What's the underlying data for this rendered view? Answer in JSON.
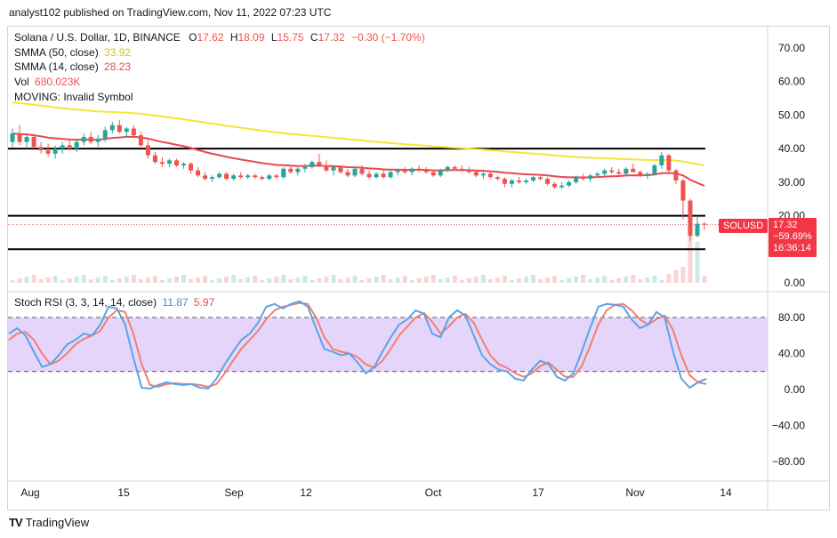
{
  "header": {
    "publisher": "analyst102 published on TradingView.com, Nov 11, 2022 07:23 UTC"
  },
  "legend": {
    "instrument": "Solana / U.S. Dollar, 1D, BINANCE",
    "open_label": "O",
    "open": "17.62",
    "high_label": "H",
    "high": "18.09",
    "low_label": "L",
    "low": "15.75",
    "close_label": "C",
    "close": "17.32",
    "change": "−0.30 (−1.70%)",
    "smma50_label": "SMMA (50, close)",
    "smma50_value": "33.92",
    "smma14_label": "SMMA (14, close)",
    "smma14_value": "28.23",
    "vol_label": "Vol",
    "vol_value": "680.023K",
    "moving_label": "MOVING: Invalid Symbol",
    "stoch_label": "Stoch RSI (3, 3, 14, 14, close)",
    "stoch_k": "11.87",
    "stoch_d": "5.97"
  },
  "price_tag": {
    "symbol": "SOLUSD",
    "price": "17.32",
    "change_pct": "−59.69%",
    "countdown": "16:36:14"
  },
  "footer": {
    "brand": "TradingView",
    "logo": "TV"
  },
  "colors": {
    "up": "#26a69a",
    "down": "#ef5350",
    "smma50": "#f5e63a",
    "smma14": "#e8484d",
    "stoch_k": "#5ba3e6",
    "stoch_d": "#f08070",
    "band": "#e6d5fb",
    "tag": "#f23645"
  },
  "chart_data": [
    {
      "type": "candlestick",
      "title": "Solana / U.S. Dollar, 1D, BINANCE",
      "y_ticks": [
        "70.00",
        "60.00",
        "50.00",
        "40.00",
        "30.00",
        "20.00",
        "0.00"
      ],
      "x_ticks": [
        "Aug",
        "15",
        "Sep",
        "12",
        "Oct",
        "17",
        "Nov",
        "14"
      ],
      "ylim": [
        0,
        75
      ],
      "horizontal_levels": [
        40,
        20,
        10
      ],
      "ohlc": [
        [
          42.0,
          46.0,
          40.5,
          44.5
        ],
        [
          44.5,
          47.0,
          41.0,
          42.0
        ],
        [
          42.0,
          44.0,
          40.0,
          43.5
        ],
        [
          43.5,
          44.5,
          40.0,
          40.5
        ],
        [
          40.5,
          42.0,
          38.5,
          39.5
        ],
        [
          39.5,
          41.5,
          37.5,
          38.5
        ],
        [
          38.5,
          41.0,
          37.0,
          40.0
        ],
        [
          40.0,
          42.0,
          38.5,
          41.0
        ],
        [
          41.0,
          42.5,
          39.5,
          40.0
        ],
        [
          40.0,
          43.0,
          39.0,
          42.0
        ],
        [
          42.0,
          44.5,
          41.0,
          43.5
        ],
        [
          43.5,
          45.0,
          41.5,
          42.0
        ],
        [
          42.0,
          44.0,
          40.5,
          43.0
        ],
        [
          43.0,
          46.5,
          42.0,
          45.5
        ],
        [
          45.5,
          48.0,
          44.5,
          47.0
        ],
        [
          47.0,
          48.5,
          44.5,
          45.0
        ],
        [
          45.0,
          46.5,
          43.5,
          46.0
        ],
        [
          46.0,
          47.0,
          43.5,
          44.0
        ],
        [
          44.0,
          45.0,
          40.5,
          41.0
        ],
        [
          41.0,
          42.5,
          37.0,
          38.0
        ],
        [
          38.0,
          39.0,
          35.5,
          36.0
        ],
        [
          36.0,
          37.5,
          34.5,
          35.5
        ],
        [
          35.5,
          37.0,
          34.5,
          36.5
        ],
        [
          36.5,
          37.0,
          34.5,
          35.0
        ],
        [
          35.0,
          36.0,
          34.0,
          35.5
        ],
        [
          35.5,
          36.0,
          32.5,
          33.5
        ],
        [
          33.5,
          34.5,
          31.5,
          32.0
        ],
        [
          32.0,
          33.0,
          30.5,
          31.0
        ],
        [
          31.0,
          32.0,
          30.0,
          31.5
        ],
        [
          31.5,
          33.0,
          31.0,
          32.5
        ],
        [
          32.5,
          33.0,
          30.5,
          31.0
        ],
        [
          31.0,
          32.5,
          30.5,
          32.0
        ],
        [
          32.0,
          33.0,
          31.0,
          31.5
        ],
        [
          31.5,
          32.5,
          31.0,
          32.0
        ],
        [
          32.0,
          32.5,
          31.0,
          31.5
        ],
        [
          31.5,
          32.0,
          30.5,
          31.0
        ],
        [
          31.0,
          32.5,
          30.5,
          32.0
        ],
        [
          32.0,
          32.5,
          31.0,
          31.5
        ],
        [
          31.5,
          34.5,
          31.0,
          34.0
        ],
        [
          34.0,
          35.0,
          32.5,
          33.0
        ],
        [
          33.0,
          34.5,
          32.0,
          34.0
        ],
        [
          34.0,
          35.5,
          33.0,
          34.5
        ],
        [
          34.5,
          36.5,
          34.0,
          36.0
        ],
        [
          36.0,
          38.5,
          34.5,
          35.0
        ],
        [
          35.0,
          36.5,
          33.0,
          33.5
        ],
        [
          33.5,
          35.0,
          32.0,
          34.5
        ],
        [
          34.5,
          35.0,
          32.5,
          33.0
        ],
        [
          33.0,
          34.0,
          31.5,
          32.0
        ],
        [
          32.0,
          34.5,
          31.5,
          34.0
        ],
        [
          34.0,
          35.0,
          32.0,
          32.5
        ],
        [
          32.5,
          33.5,
          31.0,
          31.5
        ],
        [
          31.5,
          33.0,
          31.0,
          32.5
        ],
        [
          32.5,
          33.5,
          31.0,
          31.5
        ],
        [
          31.5,
          33.5,
          31.0,
          33.0
        ],
        [
          33.0,
          34.0,
          32.0,
          33.5
        ],
        [
          33.5,
          34.5,
          32.5,
          33.0
        ],
        [
          33.0,
          34.5,
          32.0,
          34.0
        ],
        [
          34.0,
          35.0,
          33.0,
          33.5
        ],
        [
          33.5,
          34.5,
          32.5,
          33.0
        ],
        [
          33.0,
          33.5,
          31.5,
          32.0
        ],
        [
          32.0,
          34.0,
          31.5,
          33.5
        ],
        [
          33.5,
          35.0,
          33.0,
          34.5
        ],
        [
          34.5,
          35.0,
          33.5,
          34.0
        ],
        [
          34.0,
          35.0,
          33.0,
          33.5
        ],
        [
          33.5,
          34.5,
          32.5,
          33.0
        ],
        [
          33.0,
          33.5,
          31.5,
          32.0
        ],
        [
          32.0,
          33.0,
          31.0,
          32.5
        ],
        [
          32.5,
          33.0,
          31.0,
          31.5
        ],
        [
          31.5,
          32.0,
          30.5,
          31.0
        ],
        [
          31.0,
          31.5,
          28.5,
          29.5
        ],
        [
          29.5,
          31.0,
          28.5,
          30.5
        ],
        [
          30.5,
          31.5,
          29.5,
          30.0
        ],
        [
          30.0,
          31.0,
          29.5,
          30.5
        ],
        [
          30.5,
          32.0,
          30.0,
          31.5
        ],
        [
          31.5,
          32.0,
          30.5,
          31.0
        ],
        [
          31.0,
          31.5,
          29.0,
          29.5
        ],
        [
          29.5,
          30.0,
          28.0,
          28.5
        ],
        [
          28.5,
          30.0,
          28.0,
          29.0
        ],
        [
          29.0,
          30.5,
          28.5,
          30.0
        ],
        [
          30.0,
          32.0,
          29.5,
          31.5
        ],
        [
          31.5,
          32.5,
          30.5,
          31.0
        ],
        [
          31.0,
          32.5,
          30.0,
          32.0
        ],
        [
          32.0,
          33.0,
          31.5,
          32.5
        ],
        [
          32.5,
          34.0,
          32.0,
          33.5
        ],
        [
          33.5,
          34.5,
          32.5,
          33.0
        ],
        [
          33.0,
          34.0,
          32.0,
          32.5
        ],
        [
          32.5,
          34.5,
          32.0,
          34.0
        ],
        [
          34.0,
          35.5,
          33.5,
          33.0
        ],
        [
          33.0,
          33.5,
          31.5,
          32.0
        ],
        [
          32.0,
          33.0,
          31.0,
          32.5
        ],
        [
          32.5,
          35.5,
          32.0,
          35.0
        ],
        [
          35.0,
          39.0,
          34.0,
          38.0
        ],
        [
          38.0,
          38.5,
          33.0,
          33.5
        ],
        [
          33.5,
          34.0,
          29.5,
          30.5
        ],
        [
          30.5,
          31.0,
          19.0,
          24.5
        ],
        [
          24.5,
          25.0,
          12.5,
          14.0
        ],
        [
          14.0,
          20.0,
          13.5,
          17.6
        ],
        [
          17.62,
          18.09,
          15.75,
          17.32
        ]
      ],
      "volume_scale_note": "volume histogram under candles"
    },
    {
      "type": "line",
      "title": "Stoch RSI (3, 3, 14, 14, close)",
      "y_ticks": [
        "80.00",
        "40.00",
        "0.00",
        "−40.00",
        "−80.00"
      ],
      "ylim": [
        -95,
        105
      ],
      "band": [
        20,
        80
      ],
      "series": [
        {
          "name": "K",
          "values": [
            62,
            68,
            60,
            42,
            25,
            28,
            38,
            50,
            55,
            62,
            60,
            72,
            92,
            90,
            72,
            35,
            2,
            1,
            5,
            8,
            6,
            5,
            6,
            2,
            1,
            12,
            28,
            42,
            55,
            62,
            74,
            92,
            95,
            90,
            95,
            98,
            92,
            68,
            45,
            42,
            38,
            40,
            30,
            18,
            25,
            42,
            58,
            72,
            78,
            88,
            84,
            62,
            58,
            80,
            88,
            82,
            60,
            38,
            28,
            22,
            20,
            12,
            10,
            22,
            32,
            28,
            14,
            10,
            18,
            42,
            68,
            92,
            95,
            94,
            92,
            78,
            68,
            72,
            86,
            80,
            42,
            12,
            2,
            8,
            12
          ]
        },
        {
          "name": "D",
          "values": [
            55,
            62,
            64,
            55,
            40,
            28,
            32,
            40,
            50,
            56,
            60,
            65,
            80,
            88,
            86,
            62,
            28,
            5,
            3,
            6,
            7,
            6,
            6,
            5,
            3,
            6,
            18,
            32,
            45,
            55,
            65,
            78,
            88,
            92,
            94,
            96,
            95,
            80,
            58,
            45,
            42,
            40,
            36,
            28,
            24,
            32,
            45,
            60,
            70,
            80,
            85,
            75,
            62,
            70,
            80,
            84,
            74,
            55,
            38,
            28,
            24,
            18,
            14,
            18,
            26,
            30,
            22,
            14,
            14,
            26,
            48,
            72,
            88,
            94,
            95,
            88,
            78,
            72,
            78,
            82,
            66,
            38,
            16,
            8,
            6
          ]
        }
      ]
    }
  ]
}
